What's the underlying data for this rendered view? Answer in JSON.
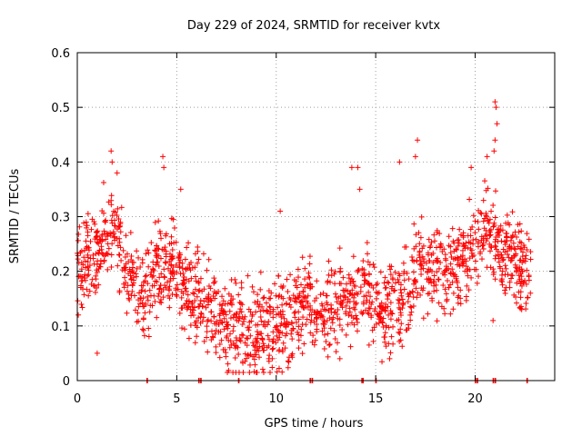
{
  "chart_data": {
    "type": "scatter",
    "title": "Day 229 of 2024, SRMTID for receiver kvtx",
    "xlabel": "GPS time / hours",
    "ylabel": "SRMTID / TECUs",
    "xlim": [
      0,
      24
    ],
    "ylim": [
      0,
      0.6
    ],
    "x_ticks": [
      0,
      5,
      10,
      15,
      20
    ],
    "x_tick_labels": [
      "0",
      "5",
      "10",
      "15",
      "20"
    ],
    "y_ticks": [
      0,
      0.1,
      0.2,
      0.3,
      0.4,
      0.5,
      0.6
    ],
    "y_tick_labels": [
      "0",
      "0.1",
      "0.2",
      "0.3",
      "0.4",
      "0.5",
      "0.6"
    ],
    "grid": true,
    "marker": "plus",
    "color": "#ff0000",
    "series_name": "SRMTID",
    "trend_hours": [
      0,
      1,
      1.8,
      2.5,
      3.2,
      4,
      4.5,
      5.5,
      6.5,
      7.5,
      8.5,
      9.5,
      10.5,
      11.5,
      12.5,
      13.5,
      14.5,
      15.5,
      16.5,
      17.5,
      18.5,
      19.5,
      20.5,
      21.5,
      22.5
    ],
    "trend_values": [
      0.22,
      0.23,
      0.29,
      0.21,
      0.15,
      0.19,
      0.22,
      0.17,
      0.13,
      0.11,
      0.1,
      0.09,
      0.11,
      0.14,
      0.13,
      0.15,
      0.17,
      0.12,
      0.15,
      0.22,
      0.19,
      0.22,
      0.29,
      0.23,
      0.2
    ],
    "spikes": [
      {
        "x": 1.7,
        "y": 0.42
      },
      {
        "x": 1.75,
        "y": 0.4
      },
      {
        "x": 4.3,
        "y": 0.41
      },
      {
        "x": 4.35,
        "y": 0.39
      },
      {
        "x": 5.2,
        "y": 0.35
      },
      {
        "x": 13.8,
        "y": 0.39
      },
      {
        "x": 14.1,
        "y": 0.39
      },
      {
        "x": 14.2,
        "y": 0.35
      },
      {
        "x": 16.2,
        "y": 0.4
      },
      {
        "x": 17.1,
        "y": 0.44
      },
      {
        "x": 17.0,
        "y": 0.41
      },
      {
        "x": 19.8,
        "y": 0.39
      },
      {
        "x": 20.6,
        "y": 0.41
      },
      {
        "x": 21.0,
        "y": 0.51
      },
      {
        "x": 21.05,
        "y": 0.5
      },
      {
        "x": 21.1,
        "y": 0.47
      },
      {
        "x": 21.0,
        "y": 0.44
      },
      {
        "x": 20.95,
        "y": 0.42
      },
      {
        "x": 10.2,
        "y": 0.31
      },
      {
        "x": 2.0,
        "y": 0.38
      },
      {
        "x": 1.0,
        "y": 0.05
      },
      {
        "x": 13.2,
        "y": 0.04
      },
      {
        "x": 15.7,
        "y": 0.04
      },
      {
        "x": 9.8,
        "y": 0.04
      },
      {
        "x": 20.9,
        "y": 0.11
      },
      {
        "x": 0.05,
        "y": 0.12
      }
    ],
    "zero_hours": [
      3.5,
      6.1,
      6.2,
      8.1,
      11.7,
      11.8,
      14.3,
      14.35,
      15.0,
      20.0,
      20.1,
      20.9,
      21.0,
      22.6
    ]
  }
}
